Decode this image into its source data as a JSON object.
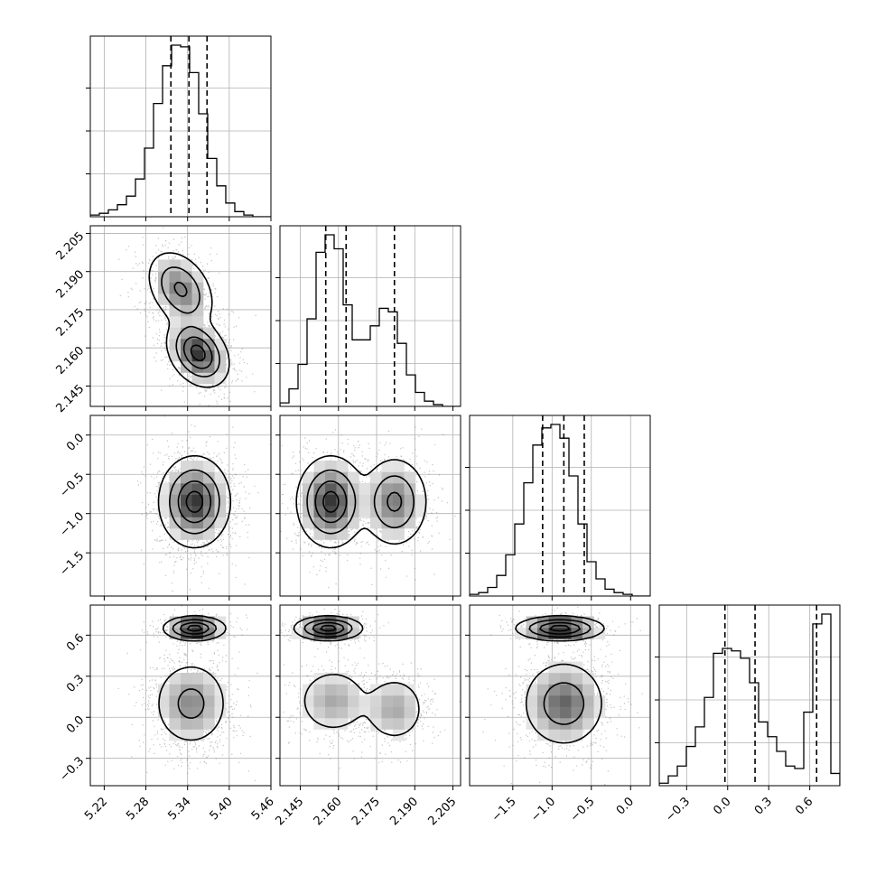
{
  "chart_data": {
    "type": "corner",
    "grid": true,
    "dims": [
      {
        "ticks": [
          5.22,
          5.28,
          5.34,
          5.4,
          5.46
        ],
        "tick_labels": [
          "5.22",
          "5.28",
          "5.34",
          "5.40",
          "5.46"
        ],
        "range": [
          5.2,
          5.46
        ],
        "quantiles": [
          5.316,
          5.342,
          5.368
        ]
      },
      {
        "ticks": [
          2.145,
          2.16,
          2.175,
          2.19,
          2.205
        ],
        "tick_labels": [
          "2.145",
          "2.160",
          "2.175",
          "2.190",
          "2.205"
        ],
        "range": [
          2.137,
          2.208
        ],
        "quantiles": [
          2.155,
          2.163,
          2.182
        ]
      },
      {
        "ticks": [
          -1.5,
          -1.0,
          -0.5,
          0.0
        ],
        "tick_labels": [
          "−1.5",
          "−1.0",
          "−0.5",
          "0.0"
        ],
        "range": [
          -2.05,
          0.25
        ],
        "quantiles": [
          -1.12,
          -0.85,
          -0.59
        ]
      },
      {
        "ticks": [
          -0.3,
          0.0,
          0.3,
          0.6
        ],
        "tick_labels": [
          "−0.3",
          "0.0",
          "0.3",
          "0.6"
        ],
        "range": [
          -0.5,
          0.82
        ],
        "quantiles": [
          -0.02,
          0.2,
          0.65
        ]
      }
    ],
    "histograms": [
      [
        1,
        2,
        4,
        7,
        12,
        22,
        40,
        66,
        88,
        100,
        99,
        84,
        60,
        34,
        18,
        8,
        3,
        1,
        0,
        0
      ],
      [
        2,
        10,
        24,
        50,
        88,
        98,
        90,
        58,
        38,
        38,
        46,
        56,
        54,
        36,
        18,
        8,
        3,
        1,
        0,
        0
      ],
      [
        1,
        2,
        5,
        12,
        24,
        42,
        66,
        88,
        98,
        100,
        92,
        70,
        42,
        20,
        10,
        4,
        2,
        1,
        0,
        0
      ],
      [
        1,
        4,
        8,
        16,
        24,
        36,
        54,
        56,
        55,
        52,
        42,
        26,
        20,
        14,
        8,
        7,
        30,
        66,
        70,
        5
      ]
    ],
    "pair_components": {
      "1_0": [
        {
          "w": 0.45,
          "m": [
            5.33,
            2.183
          ],
          "s": [
            0.022,
            0.007
          ],
          "r": -0.35
        },
        {
          "w": 0.55,
          "m": [
            5.355,
            2.158
          ],
          "s": [
            0.02,
            0.006
          ],
          "r": -0.3
        }
      ],
      "2_0": [
        {
          "w": 1.0,
          "m": [
            5.35,
            -0.85
          ],
          "s": [
            0.023,
            0.26
          ],
          "r": 0.0
        }
      ],
      "2_1": [
        {
          "w": 0.6,
          "m": [
            2.157,
            -0.85
          ],
          "s": [
            0.006,
            0.26
          ],
          "r": 0.0
        },
        {
          "w": 0.4,
          "m": [
            2.182,
            -0.85
          ],
          "s": [
            0.006,
            0.26
          ],
          "r": 0.0
        }
      ],
      "3_0": [
        {
          "w": 0.35,
          "m": [
            5.35,
            0.65
          ],
          "s": [
            0.02,
            0.04
          ],
          "r": 0.0
        },
        {
          "w": 0.65,
          "m": [
            5.345,
            0.1
          ],
          "s": [
            0.026,
            0.15
          ],
          "r": 0.0
        }
      ],
      "3_1": [
        {
          "w": 0.35,
          "m": [
            2.156,
            0.65
          ],
          "s": [
            0.006,
            0.04
          ],
          "r": 0.0
        },
        {
          "w": 0.35,
          "m": [
            2.158,
            0.12
          ],
          "s": [
            0.007,
            0.12
          ],
          "r": 0.0
        },
        {
          "w": 0.3,
          "m": [
            2.182,
            0.06
          ],
          "s": [
            0.006,
            0.12
          ],
          "r": 0.0
        }
      ],
      "3_2": [
        {
          "w": 0.35,
          "m": [
            -0.9,
            0.65
          ],
          "s": [
            0.25,
            0.04
          ],
          "r": 0.0
        },
        {
          "w": 0.65,
          "m": [
            -0.85,
            0.1
          ],
          "s": [
            0.25,
            0.15
          ],
          "r": 0.0
        }
      ]
    }
  }
}
